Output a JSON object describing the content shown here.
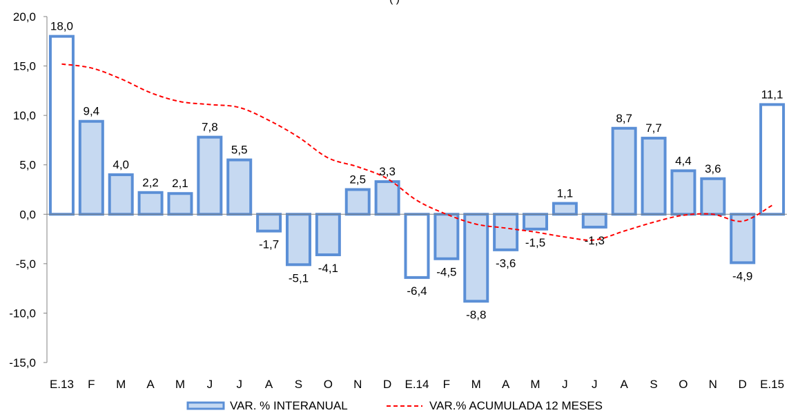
{
  "chart_data": {
    "type": "bar",
    "title": "",
    "xlabel": "",
    "ylabel": "",
    "categories": [
      "E.13",
      "F",
      "M",
      "A",
      "M",
      "J",
      "J",
      "A",
      "S",
      "O",
      "N",
      "D",
      "E.14",
      "F",
      "M",
      "A",
      "M",
      "J",
      "J",
      "A",
      "S",
      "O",
      "N",
      "D",
      "E.15"
    ],
    "series": [
      {
        "name": "VAR. % INTERANUAL",
        "type": "bar",
        "values": [
          18.0,
          9.4,
          4.0,
          2.2,
          2.1,
          7.8,
          5.5,
          -1.7,
          -5.1,
          -4.1,
          2.5,
          3.3,
          -6.4,
          -4.5,
          -8.8,
          -3.6,
          -1.5,
          1.1,
          -1.3,
          8.7,
          7.7,
          4.4,
          3.6,
          -4.9,
          11.1
        ],
        "labels": [
          "18,0",
          "9,4",
          "4,0",
          "2,2",
          "2,1",
          "7,8",
          "5,5",
          "-1,7",
          "-5,1",
          "-4,1",
          "2,5",
          "3,3",
          "-6,4",
          "-4,5",
          "-8,8",
          "-3,6",
          "-1,5",
          "1,1",
          "-1,3",
          "8,7",
          "7,7",
          "4,4",
          "3,6",
          "-4,9",
          "11,1"
        ],
        "highlight": [
          true,
          false,
          false,
          false,
          false,
          false,
          false,
          false,
          false,
          false,
          false,
          false,
          true,
          false,
          false,
          false,
          false,
          false,
          false,
          false,
          false,
          false,
          false,
          false,
          true
        ]
      },
      {
        "name": "VAR.% ACUMULADA 12 MESES",
        "type": "line",
        "values": [
          15.2,
          14.8,
          13.7,
          12.3,
          11.4,
          11.1,
          10.8,
          9.5,
          7.8,
          5.7,
          4.8,
          3.6,
          1.4,
          0.0,
          -1.0,
          -1.4,
          -1.8,
          -2.3,
          -2.6,
          -1.7,
          -0.8,
          -0.1,
          0.0,
          -0.7,
          0.9
        ]
      }
    ],
    "y_ticks": [
      "20,0",
      "15,0",
      "10,0",
      "5,0",
      "0,0",
      "-5,0",
      "-10,0",
      "-15,0"
    ],
    "ylim": [
      -15,
      20
    ],
    "grid": false,
    "legend_position": "bottom",
    "colors": {
      "bar_fill": "#c6d9f1",
      "bar_stroke": "#5b8fd6",
      "highlight_fill": "#ffffff",
      "line": "#ff0000",
      "axis": "#808080"
    },
    "partial_title": "(                    )"
  }
}
